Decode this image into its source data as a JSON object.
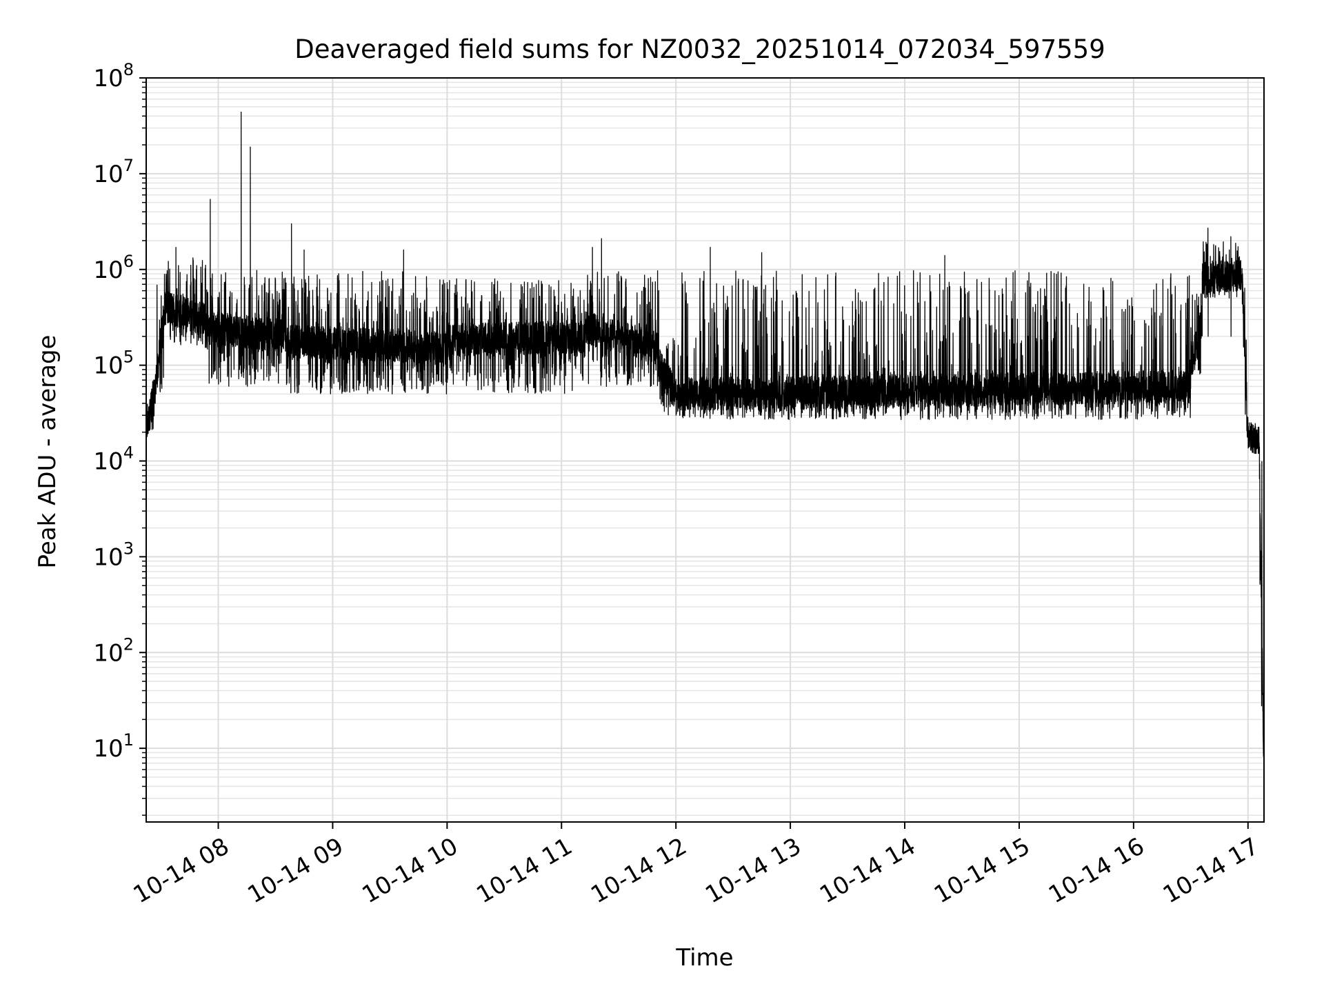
{
  "chart_data": {
    "type": "line",
    "title": "Deaveraged field sums for NZ0032_20251014_072034_597559",
    "xlabel": "Time",
    "ylabel": "Peak ADU - average",
    "yscale": "log",
    "ylim": [
      1.7,
      100000000
    ],
    "xlim_hours": [
      7.37,
      17.14
    ],
    "x_ticks": [
      {
        "label": "10-14 08",
        "hour": 8
      },
      {
        "label": "10-14 09",
        "hour": 9
      },
      {
        "label": "10-14 10",
        "hour": 10
      },
      {
        "label": "10-14 11",
        "hour": 11
      },
      {
        "label": "10-14 12",
        "hour": 12
      },
      {
        "label": "10-14 13",
        "hour": 13
      },
      {
        "label": "10-14 14",
        "hour": 14
      },
      {
        "label": "10-14 15",
        "hour": 15
      },
      {
        "label": "10-14 16",
        "hour": 16
      },
      {
        "label": "10-14 17",
        "hour": 17
      }
    ],
    "y_ticks": [
      {
        "base": "10",
        "exp": "1",
        "value": 10
      },
      {
        "base": "10",
        "exp": "2",
        "value": 100
      },
      {
        "base": "10",
        "exp": "3",
        "value": 1000
      },
      {
        "base": "10",
        "exp": "4",
        "value": 10000
      },
      {
        "base": "10",
        "exp": "5",
        "value": 100000
      },
      {
        "base": "10",
        "exp": "6",
        "value": 1000000
      },
      {
        "base": "10",
        "exp": "7",
        "value": 10000000
      },
      {
        "base": "10",
        "exp": "8",
        "value": 100000000
      }
    ],
    "grid": true,
    "series": [
      {
        "name": "field sums",
        "color": "#000000",
        "segments": [
          {
            "t0": 7.37,
            "t1": 7.45,
            "v0": 20000,
            "v1": 60000,
            "lo": 18000,
            "hi": 70000
          },
          {
            "t0": 7.45,
            "t1": 7.55,
            "v0": 60000,
            "v1": 600000,
            "lo": 50000,
            "hi": 900000
          },
          {
            "t0": 7.55,
            "t1": 7.9,
            "v0": 400000,
            "v1": 300000,
            "lo": 150000,
            "hi": 1500000
          },
          {
            "t0": 7.9,
            "t1": 8.6,
            "v0": 250000,
            "v1": 200000,
            "lo": 60000,
            "hi": 1000000
          },
          {
            "t0": 8.6,
            "t1": 10.0,
            "v0": 180000,
            "v1": 150000,
            "lo": 50000,
            "hi": 1000000
          },
          {
            "t0": 10.0,
            "t1": 11.2,
            "v0": 180000,
            "v1": 200000,
            "lo": 50000,
            "hi": 800000
          },
          {
            "t0": 11.2,
            "t1": 11.85,
            "v0": 250000,
            "v1": 150000,
            "lo": 60000,
            "hi": 1000000
          },
          {
            "t0": 11.85,
            "t1": 12.05,
            "v0": 100000,
            "v1": 40000,
            "lo": 30000,
            "hi": 200000
          },
          {
            "t0": 12.05,
            "t1": 16.5,
            "v0": 50000,
            "v1": 60000,
            "lo": 27000,
            "hi": 1000000
          },
          {
            "t0": 16.5,
            "t1": 16.6,
            "v0": 100000,
            "v1": 300000,
            "lo": 80000,
            "hi": 600000
          },
          {
            "t0": 16.6,
            "t1": 16.95,
            "v0": 800000,
            "v1": 900000,
            "lo": 500000,
            "hi": 2000000
          },
          {
            "t0": 16.95,
            "t1": 17.0,
            "v0": 800000,
            "v1": 20000,
            "lo": 15000,
            "hi": 900000
          },
          {
            "t0": 17.0,
            "t1": 17.1,
            "v0": 20000,
            "v1": 15000,
            "lo": 12000,
            "hi": 25000
          },
          {
            "t0": 17.1,
            "t1": 17.14,
            "v0": 10000,
            "v1": 4,
            "lo": 4,
            "hi": 12000
          }
        ],
        "spikes": [
          {
            "t": 7.63,
            "v": 1700000
          },
          {
            "t": 7.93,
            "v": 5400000
          },
          {
            "t": 8.2,
            "v": 44000000
          },
          {
            "t": 8.28,
            "v": 19000000
          },
          {
            "t": 8.64,
            "v": 3000000
          },
          {
            "t": 8.75,
            "v": 1600000
          },
          {
            "t": 9.62,
            "v": 1600000
          },
          {
            "t": 11.27,
            "v": 1700000
          },
          {
            "t": 11.35,
            "v": 2100000
          },
          {
            "t": 12.3,
            "v": 1700000
          },
          {
            "t": 12.75,
            "v": 1500000
          },
          {
            "t": 14.35,
            "v": 1400000
          },
          {
            "t": 16.65,
            "v": 2700000
          },
          {
            "t": 16.85,
            "v": 2200000
          }
        ]
      }
    ]
  }
}
